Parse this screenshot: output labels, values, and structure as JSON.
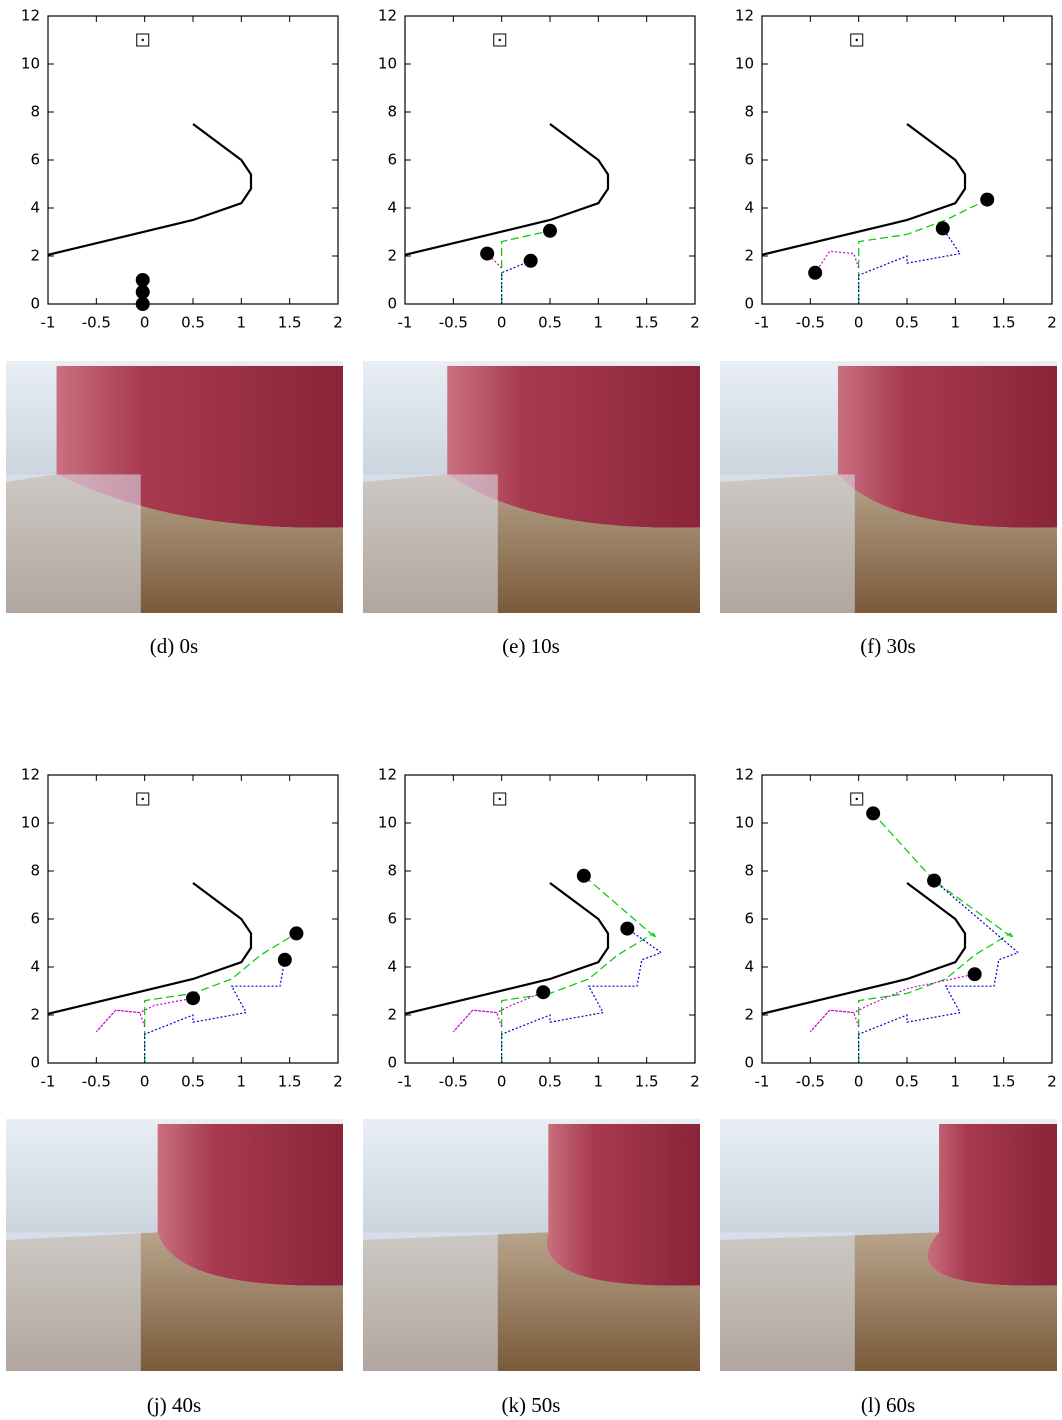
{
  "chart_data": [
    {
      "type": "line",
      "caption": "(d) 0s",
      "xlim": [
        -1,
        2
      ],
      "ylim": [
        0,
        12
      ],
      "xticks": [
        -1,
        -0.5,
        0,
        0.5,
        1,
        1.5,
        2
      ],
      "yticks": [
        0,
        2,
        4,
        6,
        8,
        10,
        12
      ],
      "series": [
        {
          "color": "#000000",
          "dash": "solid",
          "x": [
            -1,
            0.5,
            1,
            1.1,
            1.1,
            1,
            0.5
          ],
          "y": [
            2.05,
            3.5,
            4.2,
            4.8,
            5.4,
            6,
            7.5
          ]
        }
      ],
      "goal": {
        "x": [
          -0.02
        ],
        "y": [
          11
        ]
      },
      "robots": {
        "color": "#000000",
        "x": [
          -0.02,
          -0.02,
          -0.02
        ],
        "y": [
          0,
          0.5,
          1
        ]
      }
    },
    {
      "type": "line",
      "caption": "(e) 10s",
      "xlim": [
        -1,
        2
      ],
      "ylim": [
        0,
        12
      ],
      "xticks": [
        -1,
        -0.5,
        0,
        0.5,
        1,
        1.5,
        2
      ],
      "yticks": [
        0,
        2,
        4,
        6,
        8,
        10,
        12
      ],
      "series": [
        {
          "color": "#000000",
          "dash": "solid",
          "x": [
            -1,
            0.5,
            1,
            1.1,
            1.1,
            1,
            0.5
          ],
          "y": [
            2.05,
            3.5,
            4.2,
            4.8,
            5.4,
            6,
            7.5
          ]
        },
        {
          "color": "#00cc00",
          "dash": "dashed",
          "x": [
            0,
            0,
            0.5
          ],
          "y": [
            0,
            2.6,
            3.05
          ]
        },
        {
          "color": "#0000cc",
          "dash": "dotted",
          "x": [
            0,
            0,
            0.3
          ],
          "y": [
            0,
            1.3,
            1.8
          ]
        },
        {
          "color": "#cc00cc",
          "dash": "dotted",
          "x": [
            0,
            -0.15
          ],
          "y": [
            1.5,
            2.1
          ]
        }
      ],
      "goal": {
        "x": [
          -0.02
        ],
        "y": [
          11
        ]
      },
      "robots": {
        "color": "#000000",
        "x": [
          -0.15,
          0.3,
          0.5
        ],
        "y": [
          2.1,
          1.8,
          3.05
        ]
      }
    },
    {
      "type": "line",
      "caption": "(f) 30s",
      "xlim": [
        -1,
        2
      ],
      "ylim": [
        0,
        12
      ],
      "xticks": [
        -1,
        -0.5,
        0,
        0.5,
        1,
        1.5,
        2
      ],
      "yticks": [
        0,
        2,
        4,
        6,
        8,
        10,
        12
      ],
      "series": [
        {
          "color": "#000000",
          "dash": "solid",
          "x": [
            -1,
            0.5,
            1,
            1.1,
            1.1,
            1,
            0.5
          ],
          "y": [
            2.05,
            3.5,
            4.2,
            4.8,
            5.4,
            6,
            7.5
          ]
        },
        {
          "color": "#00cc00",
          "dash": "dashed",
          "x": [
            0,
            0,
            0.5,
            0.9,
            1.33
          ],
          "y": [
            0,
            2.6,
            2.9,
            3.5,
            4.35
          ]
        },
        {
          "color": "#0000cc",
          "dash": "dotted",
          "x": [
            0,
            0,
            0.5,
            0.5,
            1.05,
            0.87
          ],
          "y": [
            0,
            1.2,
            2,
            1.7,
            2.1,
            3.15
          ]
        },
        {
          "color": "#cc00cc",
          "dash": "dotted",
          "x": [
            0,
            -0.05,
            -0.3,
            -0.45
          ],
          "y": [
            1.5,
            2.1,
            2.2,
            1.3
          ]
        }
      ],
      "goal": {
        "x": [
          -0.02
        ],
        "y": [
          11
        ]
      },
      "robots": {
        "color": "#000000",
        "x": [
          -0.45,
          0.87,
          1.33
        ],
        "y": [
          1.3,
          3.15,
          4.35
        ]
      }
    },
    {
      "type": "line",
      "caption": "(j) 40s",
      "xlim": [
        -1,
        2
      ],
      "ylim": [
        0,
        12
      ],
      "xticks": [
        -1,
        -0.5,
        0,
        0.5,
        1,
        1.5,
        2
      ],
      "yticks": [
        0,
        2,
        4,
        6,
        8,
        10,
        12
      ],
      "series": [
        {
          "color": "#000000",
          "dash": "solid",
          "x": [
            -1,
            0.5,
            1,
            1.1,
            1.1,
            1,
            0.5
          ],
          "y": [
            2.05,
            3.5,
            4.2,
            4.8,
            5.4,
            6,
            7.5
          ]
        },
        {
          "color": "#00cc00",
          "dash": "dashed",
          "x": [
            0,
            0,
            0.5,
            0.9,
            1.2,
            1.57
          ],
          "y": [
            0,
            2.6,
            2.9,
            3.5,
            4.5,
            5.4
          ]
        },
        {
          "color": "#0000cc",
          "dash": "dotted",
          "x": [
            0,
            0,
            0.5,
            0.5,
            1.05,
            0.9,
            1.4,
            1.45
          ],
          "y": [
            0,
            1.2,
            2,
            1.7,
            2.1,
            3.2,
            3.2,
            4.3
          ]
        },
        {
          "color": "#cc00cc",
          "dash": "dotted",
          "x": [
            0,
            -0.05,
            -0.3,
            -0.5,
            -0.3,
            -0.05,
            0.1,
            0.5
          ],
          "y": [
            1.5,
            2.1,
            2.2,
            1.3,
            2.2,
            2.1,
            2.4,
            2.7
          ]
        }
      ],
      "goal": {
        "x": [
          -0.02
        ],
        "y": [
          11
        ]
      },
      "robots": {
        "color": "#000000",
        "x": [
          0.5,
          1.45,
          1.57
        ],
        "y": [
          2.7,
          4.3,
          5.4
        ]
      }
    },
    {
      "type": "line",
      "caption": "(k) 50s",
      "xlim": [
        -1,
        2
      ],
      "ylim": [
        0,
        12
      ],
      "xticks": [
        -1,
        -0.5,
        0,
        0.5,
        1,
        1.5,
        2
      ],
      "yticks": [
        0,
        2,
        4,
        6,
        8,
        10,
        12
      ],
      "series": [
        {
          "color": "#000000",
          "dash": "solid",
          "x": [
            -1,
            0.5,
            1,
            1.1,
            1.1,
            1,
            0.5
          ],
          "y": [
            2.05,
            3.5,
            4.2,
            4.8,
            5.4,
            6,
            7.5
          ]
        },
        {
          "color": "#00cc00",
          "dash": "dashed",
          "x": [
            0,
            0,
            0.5,
            0.9,
            1.2,
            1.57,
            1.6,
            0.85
          ],
          "y": [
            0,
            2.6,
            2.9,
            3.5,
            4.5,
            5.4,
            5.2,
            7.8
          ]
        },
        {
          "color": "#0000cc",
          "dash": "dotted",
          "x": [
            0,
            0,
            0.5,
            0.5,
            1.05,
            0.9,
            1.4,
            1.45,
            1.65,
            1.3
          ],
          "y": [
            0,
            1.2,
            2,
            1.7,
            2.1,
            3.2,
            3.2,
            4.3,
            4.6,
            5.6
          ]
        },
        {
          "color": "#cc00cc",
          "dash": "dotted",
          "x": [
            0,
            -0.05,
            -0.3,
            -0.5,
            -0.3,
            -0.05,
            0.1,
            0.43
          ],
          "y": [
            1.5,
            2.1,
            2.2,
            1.3,
            2.2,
            2.1,
            2.4,
            2.95
          ]
        }
      ],
      "goal": {
        "x": [
          -0.02
        ],
        "y": [
          11
        ]
      },
      "robots": {
        "color": "#000000",
        "x": [
          0.43,
          1.3,
          0.85
        ],
        "y": [
          2.95,
          5.6,
          7.8
        ]
      }
    },
    {
      "type": "line",
      "caption": "(l) 60s",
      "xlim": [
        -1,
        2
      ],
      "ylim": [
        0,
        12
      ],
      "xticks": [
        -1,
        -0.5,
        0,
        0.5,
        1,
        1.5,
        2
      ],
      "yticks": [
        0,
        2,
        4,
        6,
        8,
        10,
        12
      ],
      "series": [
        {
          "color": "#000000",
          "dash": "solid",
          "x": [
            -1,
            0.5,
            1,
            1.1,
            1.1,
            1,
            0.5
          ],
          "y": [
            2.05,
            3.5,
            4.2,
            4.8,
            5.4,
            6,
            7.5
          ]
        },
        {
          "color": "#00cc00",
          "dash": "dashed",
          "x": [
            0,
            0,
            0.5,
            0.9,
            1.2,
            1.57,
            1.6,
            0.78,
            0.15
          ],
          "y": [
            0,
            2.6,
            2.9,
            3.5,
            4.5,
            5.4,
            5.2,
            7.6,
            10.4
          ]
        },
        {
          "color": "#0000cc",
          "dash": "dotted",
          "x": [
            0,
            0,
            0.5,
            0.5,
            1.05,
            0.9,
            1.4,
            1.45,
            1.65,
            0.78
          ],
          "y": [
            0,
            1.2,
            2,
            1.7,
            2.1,
            3.2,
            3.2,
            4.3,
            4.6,
            7.6
          ]
        },
        {
          "color": "#cc00cc",
          "dash": "dotted",
          "x": [
            0,
            -0.05,
            -0.3,
            -0.5,
            -0.3,
            -0.05,
            0.1,
            0.5,
            1.2
          ],
          "y": [
            1.5,
            2.1,
            2.2,
            1.3,
            2.2,
            2.1,
            2.4,
            3.1,
            3.7
          ]
        }
      ],
      "goal": {
        "x": [
          -0.02
        ],
        "y": [
          11
        ]
      },
      "robots": {
        "color": "#000000",
        "x": [
          0.15,
          0.78,
          1.2
        ],
        "y": [
          10.4,
          7.6,
          3.7
        ]
      }
    }
  ]
}
